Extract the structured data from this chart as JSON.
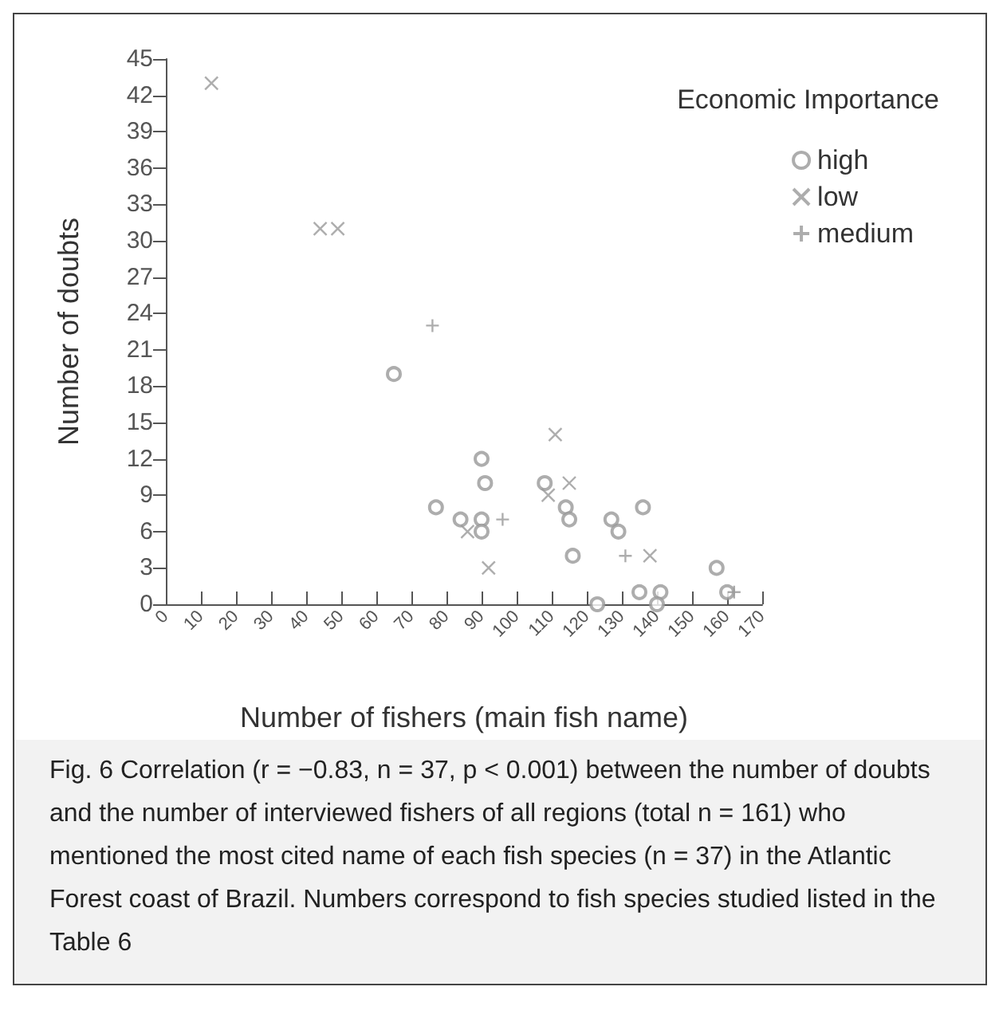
{
  "chart_data": {
    "type": "scatter",
    "xlabel": "Number of fishers (main fish name)",
    "ylabel": "Number of doubts",
    "legend_title": "Economic Importance",
    "legend": "top right",
    "grid": false,
    "xlim": [
      0,
      170
    ],
    "xticks": [
      0,
      10,
      20,
      30,
      40,
      50,
      60,
      70,
      80,
      90,
      100,
      110,
      120,
      130,
      140,
      150,
      160,
      170
    ],
    "ylim": [
      0,
      45
    ],
    "yticks": [
      0,
      3,
      6,
      9,
      12,
      15,
      18,
      21,
      24,
      27,
      30,
      33,
      36,
      39,
      42,
      45
    ],
    "series": [
      {
        "name": "high",
        "color": "#999999",
        "marker": "circle",
        "x": [
          65,
          77,
          84,
          90,
          90,
          90,
          91,
          108,
          114,
          115,
          116,
          127,
          129,
          136,
          135,
          141,
          157,
          160,
          123,
          140
        ],
        "values": [
          19,
          8,
          7,
          7,
          6,
          12,
          10,
          10,
          8,
          7,
          4,
          7,
          6,
          8,
          1,
          1,
          3,
          1,
          0,
          0
        ]
      },
      {
        "name": "low",
        "color": "#999999",
        "marker": "cross",
        "x": [
          13,
          44,
          49,
          111,
          115,
          109,
          86,
          92,
          138
        ],
        "values": [
          43,
          31,
          31,
          14,
          10,
          9,
          6,
          3,
          4
        ]
      },
      {
        "name": "medium",
        "color": "#999999",
        "marker": "plus",
        "x": [
          76,
          96,
          131,
          162
        ],
        "values": [
          23,
          7,
          4,
          1
        ]
      }
    ],
    "annotations": [
      "Fig. 6 Correlation (r = −0.83, n = 37, p < 0.001) between the number of doubts and the number of interviewed fishers of all regions (total n = 161) who mentioned the most cited name of each fish species (n = 37) in the Atlantic Forest coast of Brazil. Numbers correspond to fish species studied listed in the Table 6"
    ]
  }
}
